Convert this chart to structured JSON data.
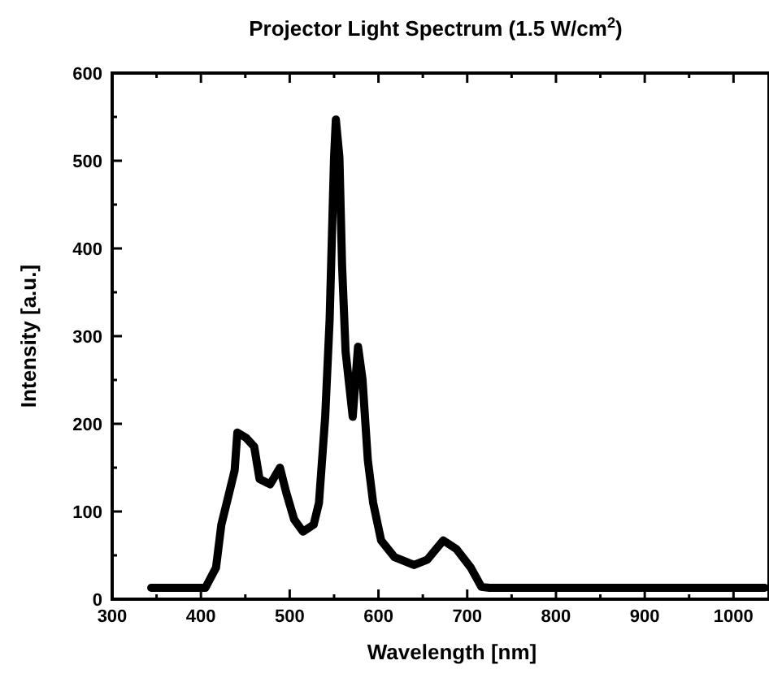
{
  "chart_data": {
    "type": "line",
    "title": "Projector Light Spectrum (1.5 W/cm$^{2}$)",
    "xlabel": "Wavelength [nm]",
    "ylabel": "Intensity [a.u.]",
    "x": [
      344,
      405,
      417,
      423,
      432,
      438,
      441,
      451,
      460,
      466,
      478,
      489,
      496,
      505,
      515,
      527,
      533,
      540,
      545,
      550,
      552,
      556,
      559,
      563,
      571,
      577,
      582,
      588,
      594,
      603,
      618,
      640,
      655,
      673,
      688,
      704,
      716,
      725,
      1035
    ],
    "series": [
      {
        "color": "#000000",
        "values": [
          13,
          13,
          36,
          85,
          122,
          147,
          190,
          184,
          174,
          137,
          131,
          150,
          122,
          91,
          77,
          85,
          110,
          208,
          319,
          504,
          547,
          504,
          381,
          282,
          208,
          288,
          251,
          159,
          110,
          67,
          48,
          39,
          45,
          67,
          57,
          36,
          14,
          13,
          13
        ]
      }
    ],
    "xlim": [
      300,
      1040
    ],
    "ylim": [
      0,
      600
    ],
    "xticks": [
      300,
      {
        "value": 350,
        "label": null
      },
      400,
      {
        "value": 450,
        "label": null
      },
      500,
      {
        "value": 550,
        "label": null
      },
      600,
      {
        "value": 650,
        "label": null
      },
      700,
      {
        "value": 750,
        "label": null
      },
      800,
      {
        "value": 850,
        "label": null
      },
      900,
      {
        "value": 950,
        "label": null
      },
      1000
    ],
    "yticks": [
      0,
      {
        "value": 50,
        "label": null
      },
      100,
      {
        "value": 150,
        "label": null
      },
      200,
      {
        "value": 250,
        "label": null
      },
      300,
      {
        "value": 350,
        "label": null
      },
      400,
      {
        "value": 450,
        "label": null
      },
      500,
      {
        "value": 550,
        "label": null
      },
      600
    ],
    "grid": false,
    "marker": "none",
    "line_style": "solid"
  }
}
